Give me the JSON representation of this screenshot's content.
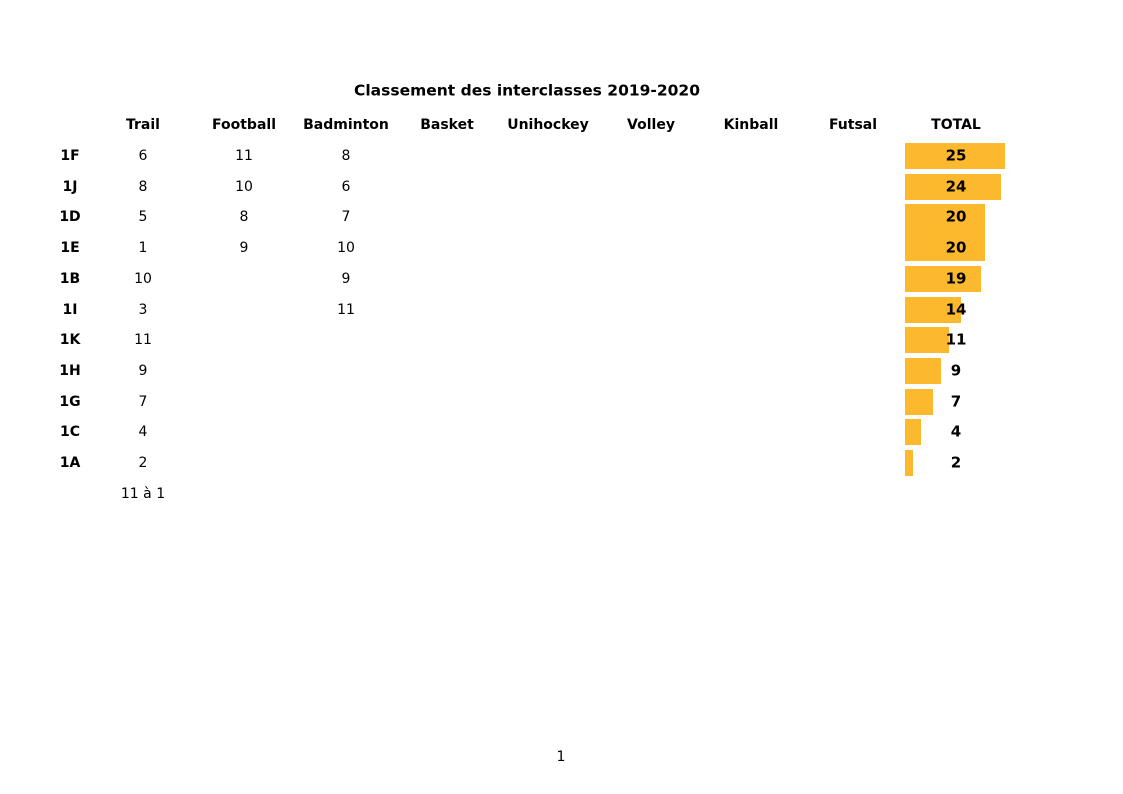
{
  "page": {
    "page_number": "1"
  },
  "chart_data": {
    "type": "table",
    "title": "Classement des interclasses 2019-2020",
    "columns": [
      "Trail",
      "Football",
      "Badminton",
      "Basket",
      "Unihockey",
      "Volley",
      "Kinball",
      "Futsal"
    ],
    "total_label": "TOTAL",
    "rows": [
      {
        "label": "1F",
        "values": [
          "6",
          "11",
          "8",
          "",
          "",
          "",
          "",
          ""
        ],
        "total": 25
      },
      {
        "label": "1J",
        "values": [
          "8",
          "10",
          "6",
          "",
          "",
          "",
          "",
          ""
        ],
        "total": 24
      },
      {
        "label": "1D",
        "values": [
          "5",
          "8",
          "7",
          "",
          "",
          "",
          "",
          ""
        ],
        "total": 20
      },
      {
        "label": "1E",
        "values": [
          "1",
          "9",
          "10",
          "",
          "",
          "",
          "",
          ""
        ],
        "total": 20
      },
      {
        "label": "1B",
        "values": [
          "10",
          "",
          "9",
          "",
          "",
          "",
          "",
          ""
        ],
        "total": 19
      },
      {
        "label": "1I",
        "values": [
          "3",
          "",
          "11",
          "",
          "",
          "",
          "",
          ""
        ],
        "total": 14
      },
      {
        "label": "1K",
        "values": [
          "11",
          "",
          "",
          "",
          "",
          "",
          "",
          ""
        ],
        "total": 11
      },
      {
        "label": "1H",
        "values": [
          "9",
          "",
          "",
          "",
          "",
          "",
          "",
          ""
        ],
        "total": 9
      },
      {
        "label": "1G",
        "values": [
          "7",
          "",
          "",
          "",
          "",
          "",
          "",
          ""
        ],
        "total": 7
      },
      {
        "label": "1C",
        "values": [
          "4",
          "",
          "",
          "",
          "",
          "",
          "",
          ""
        ],
        "total": 4
      },
      {
        "label": "1A",
        "values": [
          "2",
          "",
          "",
          "",
          "",
          "",
          "",
          ""
        ],
        "total": 2
      }
    ],
    "trail_note": "11 à 1",
    "bar_color": "#FDB92E",
    "text_color": "#000000",
    "grid": "off",
    "legend": "off"
  }
}
